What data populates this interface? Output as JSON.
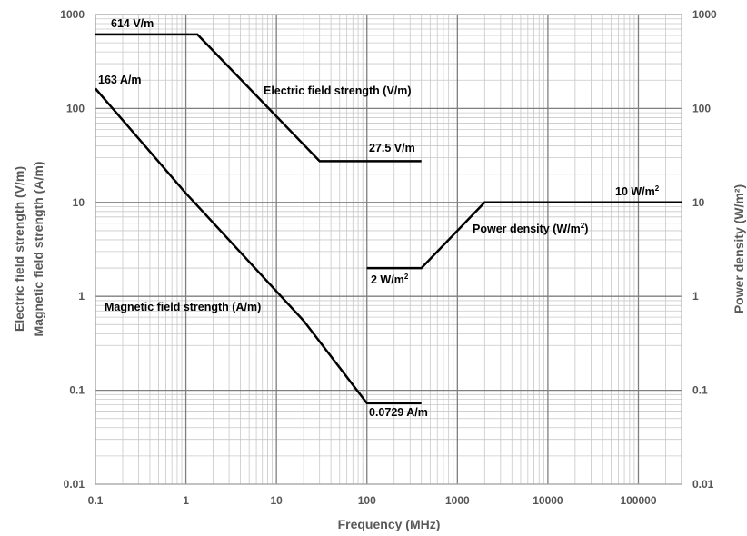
{
  "chart_data": {
    "type": "line",
    "x_scale": "log",
    "y_scale": "log",
    "xlim": [
      0.1,
      300000
    ],
    "ylim": [
      0.01,
      1000
    ],
    "xlabel": "Frequency (MHz)",
    "ylabel_left": [
      "Electric field strength (V/m)",
      "Magnetic field strength (A/m)"
    ],
    "ylabel_right": "Power density (W/m²)",
    "x_ticks": [
      "0.1",
      "1",
      "10",
      "100",
      "1000",
      "10000",
      "100000"
    ],
    "y_ticks": [
      "0.01",
      "0.1",
      "1",
      "10",
      "100",
      "1000"
    ],
    "grid": "major and minor",
    "series": [
      {
        "name": "Electric field strength (V/m)",
        "x": [
          0.1,
          1.34,
          30,
          400
        ],
        "y": [
          614,
          614,
          27.5,
          27.5
        ]
      },
      {
        "name": "Magnetic field strength (A/m)",
        "x": [
          0.1,
          1,
          20,
          100,
          400
        ],
        "y": [
          163,
          12.5,
          0.55,
          0.0729,
          0.0729
        ]
      },
      {
        "name": "Power density (W/m²)",
        "x": [
          100,
          400,
          2000,
          300000
        ],
        "y": [
          2,
          2,
          10,
          10
        ]
      }
    ],
    "annotations": [
      {
        "text": "614 V/m"
      },
      {
        "text": "163 A/m"
      },
      {
        "text": "27.5 V/m"
      },
      {
        "text": "0.0729 A/m"
      },
      {
        "text": "2 W/m",
        "superscript": "2"
      },
      {
        "text": "10 W/m",
        "superscript": "2"
      }
    ]
  },
  "colors": {
    "line": "#000000",
    "grid": "#a6a6a6",
    "text": "#555555"
  }
}
